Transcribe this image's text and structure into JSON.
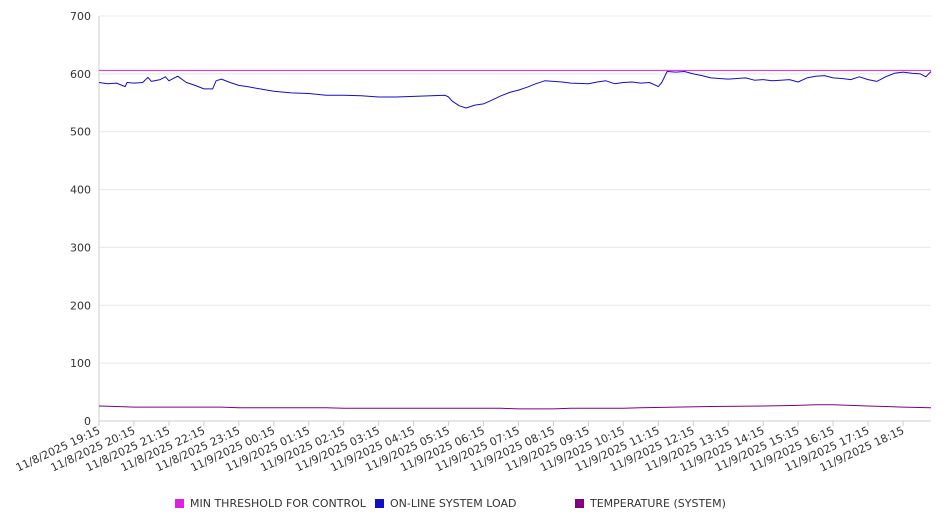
{
  "chart_data": {
    "type": "line",
    "title": "",
    "xlabel": "",
    "ylabel": "",
    "ylim": [
      0,
      700
    ],
    "yticks": [
      0,
      100,
      200,
      300,
      400,
      500,
      600,
      700
    ],
    "grid": true,
    "legend_position": "bottom",
    "x_tick_labels": [
      "11/8/2025 19:15",
      "11/8/2025 20:15",
      "11/8/2025 21:15",
      "11/8/2025 22:15",
      "11/8/2025 23:15",
      "11/9/2025 00:15",
      "11/9/2025 01:15",
      "11/9/2025 02:15",
      "11/9/2025 03:15",
      "11/9/2025 04:15",
      "11/9/2025 05:15",
      "11/9/2025 06:15",
      "11/9/2025 07:15",
      "11/9/2025 08:15",
      "11/9/2025 09:15",
      "11/9/2025 10:15",
      "11/9/2025 11:15",
      "11/9/2025 12:15",
      "11/9/2025 13:15",
      "11/9/2025 14:15",
      "11/9/2025 15:15",
      "11/9/2025 16:15",
      "11/9/2025 17:15",
      "11/9/2025 18:15"
    ],
    "x_range_hours": [
      0,
      23.8
    ],
    "series": [
      {
        "name": "MIN THRESHOLD FOR CONTROL",
        "color": "#e020e0",
        "points": [
          [
            0,
            606
          ],
          [
            23.8,
            606
          ]
        ]
      },
      {
        "name": "ON-LINE SYSTEM LOAD",
        "color": "#1010c8",
        "points": [
          [
            0,
            585
          ],
          [
            0.25,
            583
          ],
          [
            0.5,
            584
          ],
          [
            0.75,
            578
          ],
          [
            0.8,
            585
          ],
          [
            1.0,
            584
          ],
          [
            1.25,
            585
          ],
          [
            1.4,
            594
          ],
          [
            1.5,
            587
          ],
          [
            1.75,
            590
          ],
          [
            1.9,
            595
          ],
          [
            2.0,
            588
          ],
          [
            2.25,
            596
          ],
          [
            2.5,
            585
          ],
          [
            2.75,
            580
          ],
          [
            3.0,
            574
          ],
          [
            3.25,
            574
          ],
          [
            3.35,
            588
          ],
          [
            3.5,
            591
          ],
          [
            3.75,
            585
          ],
          [
            4.0,
            580
          ],
          [
            4.25,
            578
          ],
          [
            4.5,
            575
          ],
          [
            5.0,
            570
          ],
          [
            5.5,
            567
          ],
          [
            6.0,
            566
          ],
          [
            6.5,
            563
          ],
          [
            7.0,
            563
          ],
          [
            7.5,
            562
          ],
          [
            8.0,
            560
          ],
          [
            8.5,
            560
          ],
          [
            9.0,
            561
          ],
          [
            9.5,
            562
          ],
          [
            9.9,
            563
          ],
          [
            10.0,
            560
          ],
          [
            10.1,
            553
          ],
          [
            10.3,
            545
          ],
          [
            10.5,
            541
          ],
          [
            10.75,
            546
          ],
          [
            11.0,
            548
          ],
          [
            11.25,
            555
          ],
          [
            11.5,
            562
          ],
          [
            11.75,
            568
          ],
          [
            12.0,
            572
          ],
          [
            12.25,
            577
          ],
          [
            12.5,
            583
          ],
          [
            12.75,
            588
          ],
          [
            13.0,
            587
          ],
          [
            13.25,
            586
          ],
          [
            13.5,
            584
          ],
          [
            14.0,
            583
          ],
          [
            14.25,
            586
          ],
          [
            14.5,
            588
          ],
          [
            14.75,
            583
          ],
          [
            15.0,
            585
          ],
          [
            15.25,
            586
          ],
          [
            15.5,
            584
          ],
          [
            15.75,
            585
          ],
          [
            16.0,
            578
          ],
          [
            16.1,
            585
          ],
          [
            16.25,
            604
          ],
          [
            16.5,
            603
          ],
          [
            16.75,
            604
          ],
          [
            17.0,
            600
          ],
          [
            17.25,
            597
          ],
          [
            17.5,
            593
          ],
          [
            17.75,
            592
          ],
          [
            18.0,
            591
          ],
          [
            18.25,
            592
          ],
          [
            18.5,
            593
          ],
          [
            18.75,
            589
          ],
          [
            19.0,
            590
          ],
          [
            19.25,
            588
          ],
          [
            19.5,
            589
          ],
          [
            19.75,
            590
          ],
          [
            20.0,
            586
          ],
          [
            20.25,
            593
          ],
          [
            20.5,
            596
          ],
          [
            20.75,
            597
          ],
          [
            21.0,
            593
          ],
          [
            21.25,
            592
          ],
          [
            21.5,
            590
          ],
          [
            21.75,
            595
          ],
          [
            22.0,
            590
          ],
          [
            22.25,
            587
          ],
          [
            22.5,
            595
          ],
          [
            22.75,
            601
          ],
          [
            23.0,
            603
          ],
          [
            23.25,
            601
          ],
          [
            23.5,
            600
          ],
          [
            23.65,
            595
          ],
          [
            23.8,
            604
          ]
        ]
      },
      {
        "name": "TEMPERATURE (SYSTEM)",
        "color": "#800080",
        "points": [
          [
            0,
            26
          ],
          [
            0.5,
            25
          ],
          [
            1.0,
            24
          ],
          [
            3.5,
            24
          ],
          [
            4.0,
            23
          ],
          [
            6.5,
            23
          ],
          [
            7.0,
            22
          ],
          [
            11.5,
            22
          ],
          [
            12.0,
            21
          ],
          [
            13.0,
            21
          ],
          [
            13.5,
            22
          ],
          [
            15.0,
            22
          ],
          [
            15.5,
            23
          ],
          [
            16.5,
            24
          ],
          [
            17.5,
            25
          ],
          [
            19.0,
            26
          ],
          [
            20.0,
            27
          ],
          [
            20.5,
            28
          ],
          [
            21.0,
            28
          ],
          [
            21.5,
            27
          ],
          [
            22.0,
            26
          ],
          [
            22.5,
            25
          ],
          [
            23.0,
            24
          ],
          [
            23.8,
            23
          ]
        ]
      }
    ]
  }
}
